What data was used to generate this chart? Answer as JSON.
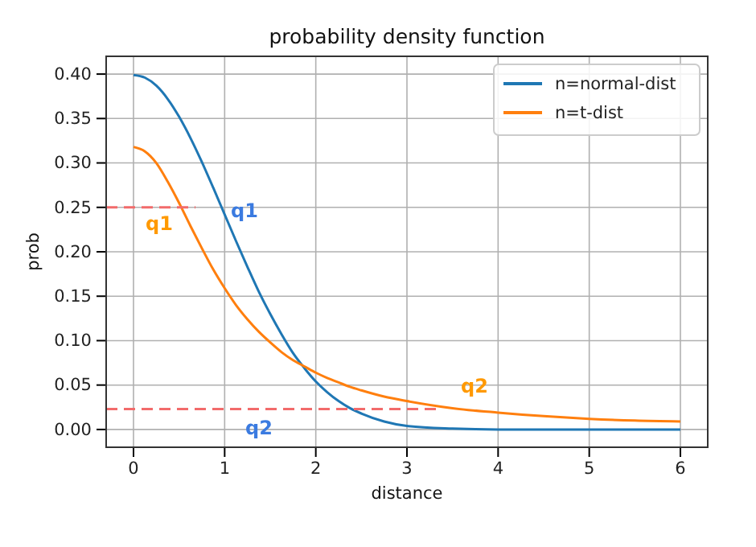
{
  "chart_data": {
    "type": "line",
    "title": "probability density function",
    "xlabel": "distance",
    "ylabel": "prob",
    "xlim": [
      -0.3,
      6.3
    ],
    "ylim": [
      -0.02,
      0.42
    ],
    "xticks": [
      0,
      1,
      2,
      3,
      4,
      5,
      6
    ],
    "yticks": [
      {
        "value": 0,
        "label": "0.00"
      },
      {
        "value": 0.05,
        "label": "0.05"
      },
      {
        "value": 0.1,
        "label": "0.10"
      },
      {
        "value": 0.15,
        "label": "0.15"
      },
      {
        "value": 0.2,
        "label": "0.20"
      },
      {
        "value": 0.25,
        "label": "0.25"
      },
      {
        "value": 0.3,
        "label": "0.30"
      },
      {
        "value": 0.35,
        "label": "0.35"
      },
      {
        "value": 0.4,
        "label": "0.40"
      }
    ],
    "grid": true,
    "legend": "top right",
    "line_style": "solid",
    "x": [
      0,
      0.125,
      0.25,
      0.375,
      0.5,
      0.625,
      0.75,
      0.875,
      1,
      1.125,
      1.25,
      1.375,
      1.5,
      1.625,
      1.75,
      1.875,
      2,
      2.125,
      2.25,
      2.375,
      2.5,
      2.75,
      3,
      3.5,
      4,
      4.5,
      5,
      5.5,
      6
    ],
    "series": [
      {
        "name": "n=normal-dist",
        "color": "#1f77b4",
        "values": [
          0.399,
          0.396,
          0.387,
          0.372,
          0.352,
          0.328,
          0.301,
          0.272,
          0.242,
          0.212,
          0.183,
          0.155,
          0.13,
          0.107,
          0.086,
          0.069,
          0.054,
          0.042,
          0.032,
          0.024,
          0.018,
          0.009,
          0.004,
          0.001,
          0,
          0,
          0,
          0,
          0
        ]
      },
      {
        "name": "n=t-dist",
        "color": "#ff7f0e",
        "values": [
          0.318,
          0.313,
          0.3,
          0.279,
          0.255,
          0.229,
          0.204,
          0.18,
          0.159,
          0.14,
          0.124,
          0.11,
          0.098,
          0.087,
          0.078,
          0.071,
          0.064,
          0.058,
          0.053,
          0.048,
          0.044,
          0.037,
          0.032,
          0.024,
          0.019,
          0.015,
          0.012,
          0.01,
          0.009
        ]
      },
      {
        "type": "line",
        "color": "#f26b6b",
        "line_style": "dashed",
        "x": [
          -0.3,
          0.68
        ],
        "values": [
          0.25,
          0.25
        ]
      },
      {
        "type": "line",
        "color": "#f26b6b",
        "line_style": "dashed",
        "x": [
          -0.3,
          3.38
        ],
        "values": [
          0.023,
          0.023
        ]
      }
    ],
    "annotations": [
      "q1",
      "q1",
      "q2",
      "q2"
    ]
  }
}
